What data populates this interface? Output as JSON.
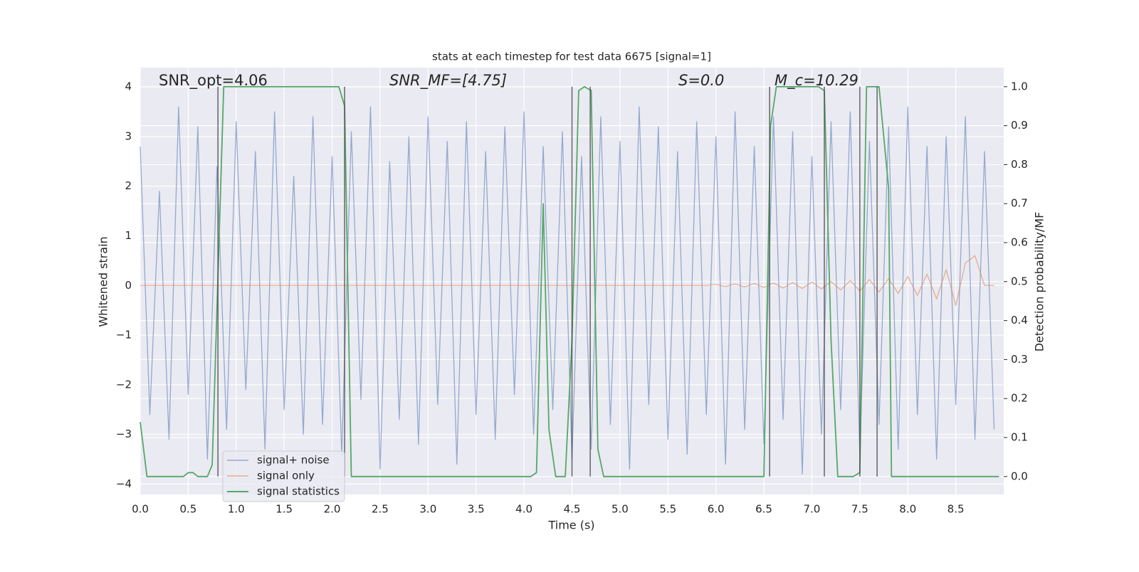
{
  "chart_data": {
    "type": "line",
    "title": "stats at each timestep for test data 6675 [signal=1]",
    "xlabel": "Time (s)",
    "ylabel": "Whitened strain",
    "y2label": "Detection probability/MF",
    "annotations": [
      "SNR_opt=4.06",
      "SNR_MF=[4.75]",
      "S=0.0",
      "M_c=10.29"
    ],
    "xlim": [
      0,
      9.0
    ],
    "ylim": [
      -4.21,
      4.39
    ],
    "y2lim": [
      -0.046,
      1.049
    ],
    "grid": true,
    "legend": "lower left",
    "xticks": [
      {
        "value": 0,
        "label": "0.0"
      },
      {
        "value": 0.5,
        "label": "0.5"
      },
      {
        "value": 1,
        "label": "1.0"
      },
      {
        "value": 1.5,
        "label": "1.5"
      },
      {
        "value": 2,
        "label": "2.0"
      },
      {
        "value": 2.5,
        "label": "2.5"
      },
      {
        "value": 3,
        "label": "3.0"
      },
      {
        "value": 3.5,
        "label": "3.5"
      },
      {
        "value": 4,
        "label": "4.0"
      },
      {
        "value": 4.5,
        "label": "4.5"
      },
      {
        "value": 5,
        "label": "5.0"
      },
      {
        "value": 5.5,
        "label": "5.5"
      },
      {
        "value": 6,
        "label": "6.0"
      },
      {
        "value": 6.5,
        "label": "6.5"
      },
      {
        "value": 7,
        "label": "7.0"
      },
      {
        "value": 7.5,
        "label": "7.5"
      },
      {
        "value": 8,
        "label": "8.0"
      },
      {
        "value": 8.5,
        "label": "8.5"
      }
    ],
    "yticks": [
      {
        "value": -4,
        "label": "−4"
      },
      {
        "value": -3,
        "label": "−3"
      },
      {
        "value": -2,
        "label": "−2"
      },
      {
        "value": -1,
        "label": "−1"
      },
      0,
      1,
      2,
      3,
      4
    ],
    "y2ticks": [
      {
        "value": 0,
        "label": "0.0"
      },
      {
        "value": 0.1,
        "label": "0.1"
      },
      {
        "value": 0.2,
        "label": "0.2"
      },
      {
        "value": 0.3,
        "label": "0.3"
      },
      {
        "value": 0.4,
        "label": "0.4"
      },
      {
        "value": 0.5,
        "label": "0.5"
      },
      {
        "value": 0.6,
        "label": "0.6"
      },
      {
        "value": 0.7,
        "label": "0.7"
      },
      {
        "value": 0.8,
        "label": "0.8"
      },
      {
        "value": 0.9,
        "label": "0.9"
      },
      {
        "value": 1,
        "label": "1.0"
      }
    ],
    "x": [
      0,
      0.1,
      0.2,
      0.3,
      0.4,
      0.5,
      0.6,
      0.7,
      0.8,
      0.9,
      1,
      1.1,
      1.2,
      1.3,
      1.4,
      1.5,
      1.6,
      1.7,
      1.8,
      1.9,
      2,
      2.1,
      2.2,
      2.3,
      2.4,
      2.5,
      2.6,
      2.7,
      2.8,
      2.9,
      3,
      3.1,
      3.2,
      3.3,
      3.4,
      3.5,
      3.6,
      3.7,
      3.8,
      3.9,
      4,
      4.1,
      4.2,
      4.3,
      4.4,
      4.5,
      4.6,
      4.7,
      4.8,
      4.9,
      5,
      5.1,
      5.2,
      5.3,
      5.4,
      5.5,
      5.6,
      5.7,
      5.8,
      5.9,
      6,
      6.1,
      6.2,
      6.3,
      6.4,
      6.5,
      6.6,
      6.7,
      6.8,
      6.9,
      7,
      7.1,
      7.2,
      7.3,
      7.4,
      7.5,
      7.6,
      7.7,
      7.8,
      7.9,
      8,
      8.1,
      8.2,
      8.3,
      8.4,
      8.5,
      8.6,
      8.7,
      8.8,
      8.9
    ],
    "series": [
      {
        "name": "signal+ noise",
        "color": "#4c72b0",
        "values": [
          2.8,
          -2.6,
          1.9,
          -3.1,
          3.6,
          -2.2,
          3.2,
          -3.5,
          2.4,
          -2.9,
          3.3,
          -2.1,
          2.7,
          -3.3,
          3.5,
          -2.5,
          2.2,
          -3.0,
          3.4,
          -2.8,
          2.6,
          -3.4,
          3.1,
          -2.3,
          3.6,
          -3.7,
          2.5,
          -2.7,
          3.0,
          -3.2,
          3.4,
          -2.4,
          2.9,
          -3.6,
          3.3,
          -2.6,
          2.7,
          -3.1,
          3.2,
          -2.2,
          3.5,
          -3.0,
          2.8,
          -2.5,
          3.1,
          -3.5,
          2.6,
          -3.3,
          3.4,
          -2.8,
          2.9,
          -3.7,
          3.6,
          -2.4,
          3.2,
          -3.1,
          2.7,
          -3.4,
          3.3,
          -2.6,
          3.0,
          -3.6,
          3.5,
          -2.9,
          2.8,
          -3.2,
          3.4,
          -2.7,
          3.1,
          -3.8,
          2.6,
          -3.0,
          3.3,
          -2.5,
          3.5,
          -3.4,
          2.9,
          -2.8,
          3.2,
          -3.3,
          3.6,
          -2.6,
          2.8,
          -3.5,
          3.0,
          -2.4,
          3.4,
          -3.1,
          2.7,
          -2.9
        ]
      },
      {
        "name": "signal only",
        "color": "#dd8452",
        "values": [
          0,
          0,
          0,
          0,
          0,
          0,
          0,
          0,
          0,
          0,
          0,
          0,
          0,
          0,
          0,
          0,
          0,
          0,
          0,
          0,
          0,
          0,
          0,
          0,
          0,
          0,
          0,
          0,
          0,
          0,
          0,
          0,
          0,
          0,
          0,
          0,
          0,
          0,
          0,
          0,
          0,
          0,
          0,
          0,
          0,
          0,
          0,
          0,
          0,
          0,
          0,
          0,
          0,
          0,
          0,
          0,
          0,
          0,
          0,
          0,
          0.02,
          -0.02,
          0.03,
          -0.03,
          0.04,
          -0.04,
          0.05,
          -0.05,
          0.06,
          -0.06,
          0.07,
          -0.07,
          0.08,
          -0.09,
          0.1,
          -0.11,
          0.12,
          -0.13,
          0.14,
          -0.16,
          0.18,
          -0.2,
          0.23,
          -0.27,
          0.32,
          -0.4,
          0.45,
          0.6,
          0,
          0
        ]
      },
      {
        "name": "signal statistics",
        "color": "#55a868",
        "axis": "y2",
        "x": [
          0.0,
          0.07,
          0.45,
          0.5,
          0.55,
          0.6,
          0.7,
          0.75,
          0.87,
          0.95,
          2.07,
          2.13,
          2.2,
          4.07,
          4.13,
          4.2,
          4.26,
          4.33,
          4.43,
          4.5,
          4.57,
          4.63,
          4.7,
          4.77,
          4.83,
          6.5,
          6.57,
          6.63,
          7.07,
          7.13,
          7.2,
          7.27,
          7.43,
          7.5,
          7.57,
          7.7,
          7.8,
          7.83,
          8.95
        ],
        "values": [
          0.14,
          0.0,
          0.0,
          0.01,
          0.01,
          0.0,
          0.0,
          0.03,
          1.0,
          1.0,
          1.0,
          0.95,
          0.0,
          0.0,
          0.01,
          0.7,
          0.12,
          0.0,
          0.0,
          0.35,
          0.99,
          1.0,
          0.99,
          0.07,
          0.0,
          0.0,
          0.9,
          1.0,
          1.0,
          0.99,
          0.35,
          0.0,
          0.0,
          0.01,
          1.0,
          1.0,
          0.74,
          0.0,
          0.0
        ]
      }
    ],
    "vertical_lines": [
      0.81,
      2.13,
      4.5,
      4.69,
      6.56,
      7.13,
      7.5,
      7.68
    ]
  }
}
